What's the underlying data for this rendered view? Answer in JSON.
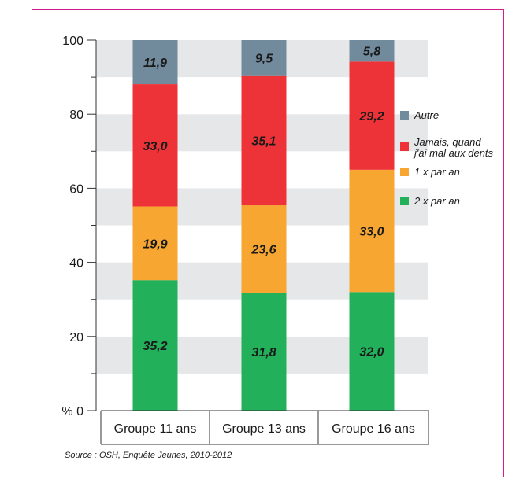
{
  "chart_data": {
    "type": "bar",
    "stacked": true,
    "categories": [
      "Groupe 11 ans",
      "Groupe 13 ans",
      "Groupe 16 ans"
    ],
    "series": [
      {
        "name": "2 x par an",
        "values": [
          35.2,
          31.8,
          32.0
        ],
        "labels": [
          "35,2",
          "31,8",
          "32,0"
        ],
        "color": "#23b05a"
      },
      {
        "name": "1 x par an",
        "values": [
          19.9,
          23.6,
          33.0
        ],
        "labels": [
          "19,9",
          "23,6",
          "33,0"
        ],
        "color": "#f6a631"
      },
      {
        "name": "Jamais, quand j'ai mal aux dents",
        "legend_lines": [
          "Jamais, quand",
          "j'ai mal aux dents"
        ],
        "values": [
          33.0,
          35.1,
          29.2
        ],
        "labels": [
          "33,0",
          "35,1",
          "29,2"
        ],
        "color": "#ee3338"
      },
      {
        "name": "Autre",
        "values": [
          11.9,
          9.5,
          5.8
        ],
        "labels": [
          "11,9",
          "9,5",
          "5,8"
        ],
        "color": "#718a9c"
      }
    ],
    "ylim": [
      0,
      100
    ],
    "yticks": [
      {
        "value": 0,
        "label": "% 0"
      },
      {
        "value": 20,
        "label": "20"
      },
      {
        "value": 40,
        "label": "40"
      },
      {
        "value": 60,
        "label": "60"
      },
      {
        "value": 80,
        "label": "80"
      },
      {
        "value": 100,
        "label": "100"
      }
    ],
    "minor_tick_step": 10,
    "band_colors": [
      "#ffffff",
      "#e6e7e8"
    ],
    "legend_placement": "right",
    "legend_order": [
      "Autre",
      "Jamais, quand j'ai mal aux dents",
      "1 x par an",
      "2 x par an"
    ]
  },
  "source": "Source : OSH, Enquête Jeunes, 2010-2012",
  "frame_color": "#d81b8c"
}
